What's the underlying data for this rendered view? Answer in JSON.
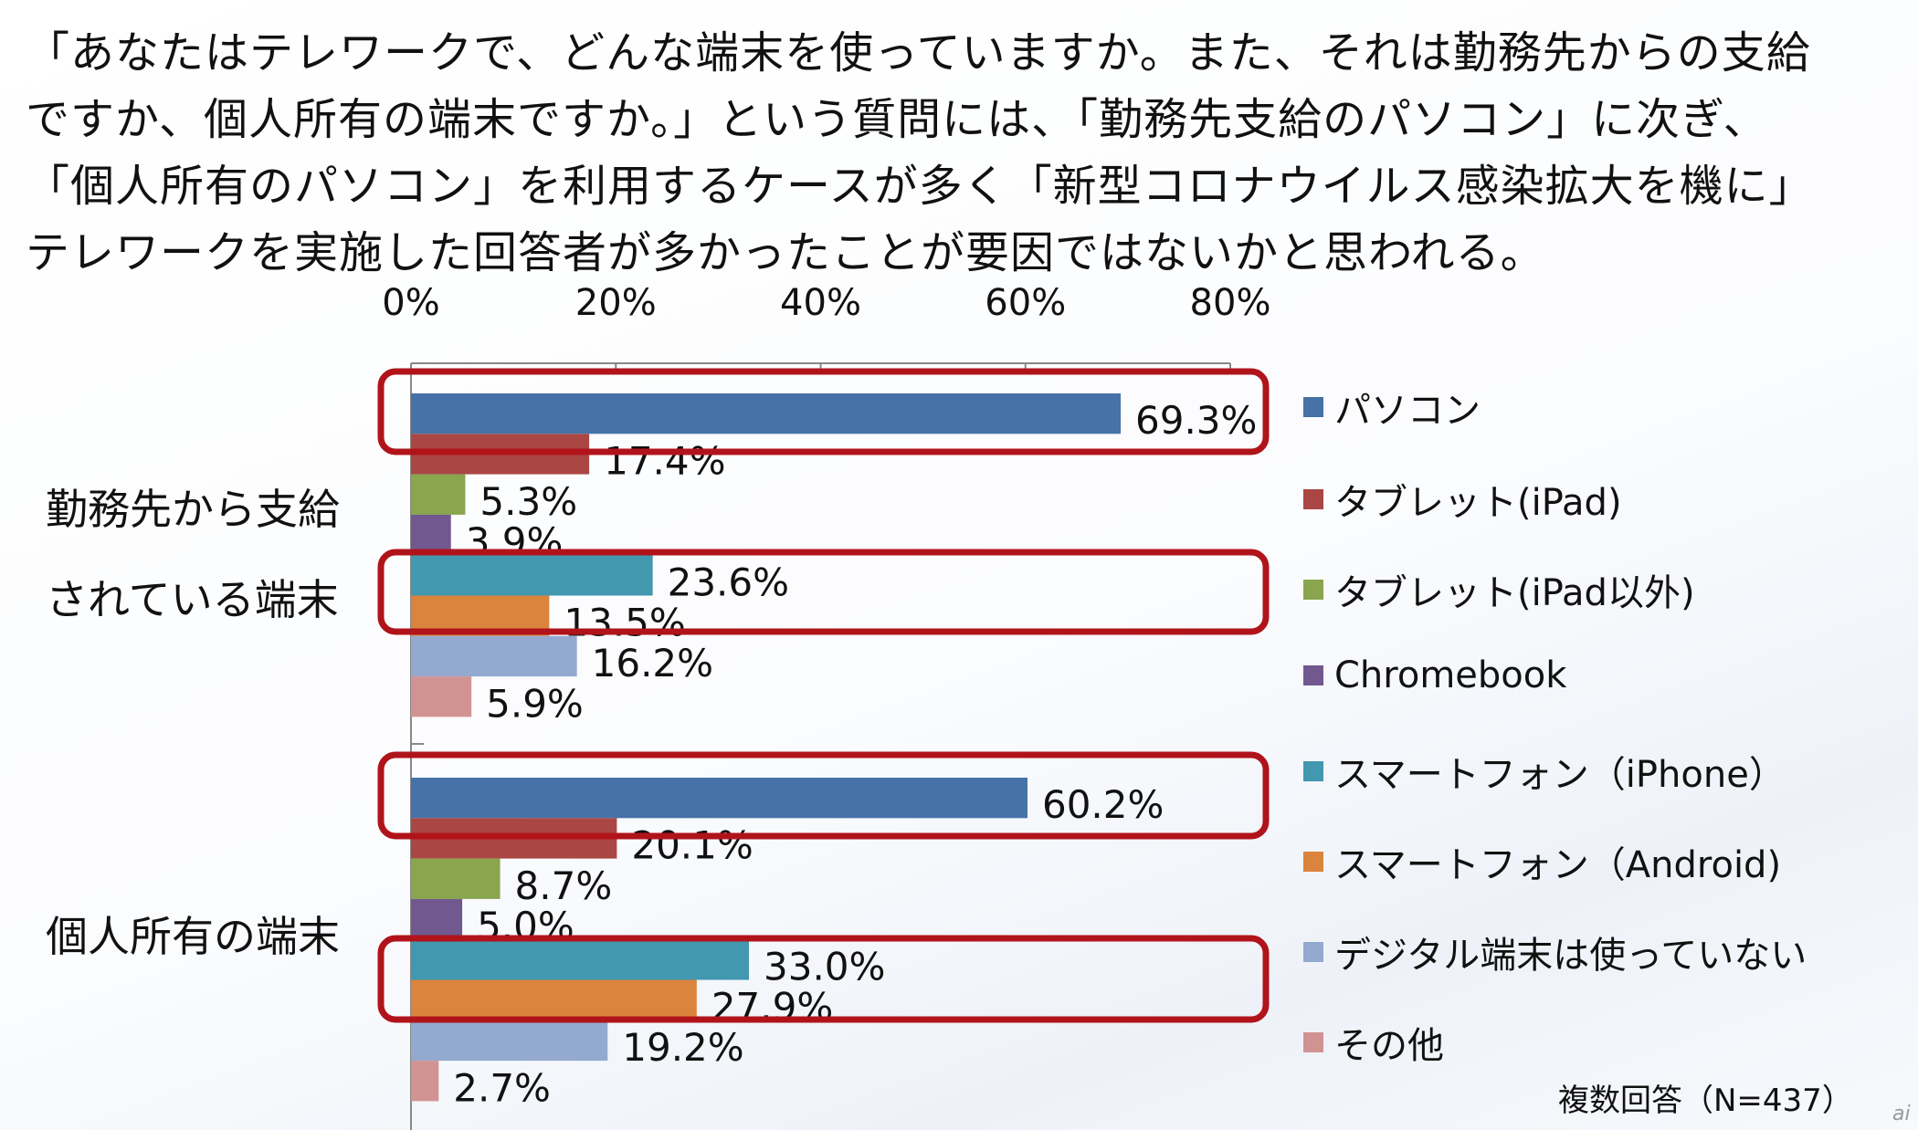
{
  "paragraph": {
    "lines": [
      "「あなたはテレワークで、どんな端末を使っていますか。また、それは勤務先からの支給",
      "ですか、個人所有の端末ですか。」という質問には、「勤務先支給のパソコン」に次ぎ、",
      "「個人所有のパソコン」を利用するケースが多く「新型コロナウイルス感染拡大を機に」",
      "テレワークを実施した回答者が多かったことが要因ではないかと思われる。"
    ]
  },
  "chart_data": {
    "type": "bar",
    "orientation": "horizontal",
    "title": "",
    "xlabel": "",
    "ylabel": "",
    "xlim": [
      0,
      80
    ],
    "x_ticks": [
      "0%",
      "20%",
      "40%",
      "60%",
      "80%"
    ],
    "x_tick_values": [
      0,
      20,
      40,
      60,
      80
    ],
    "categories": [
      {
        "label_lines": [
          "勤務先から支給",
          "されている端末"
        ]
      },
      {
        "label_lines": [
          "個人所有の端末"
        ]
      }
    ],
    "series": [
      {
        "name": "パソコン",
        "color": "#4672a8",
        "values": [
          69.3,
          60.2
        ],
        "labels": [
          "69.3%",
          "60.2%"
        ]
      },
      {
        "name": "タブレット(iPad)",
        "color": "#aa4644",
        "values": [
          17.4,
          20.1
        ],
        "labels": [
          "17.4%",
          "20.1%"
        ]
      },
      {
        "name": "タブレット(iPad以外)",
        "color": "#89a54e",
        "values": [
          5.3,
          8.7
        ],
        "labels": [
          "5.3%",
          "8.7%"
        ]
      },
      {
        "name": "Chromebook",
        "color": "#71588f",
        "values": [
          3.9,
          5.0
        ],
        "labels": [
          "3.9%",
          "5.0%"
        ]
      },
      {
        "name": "スマートフォン（iPhone）",
        "color": "#4198af",
        "values": [
          23.6,
          33.0
        ],
        "labels": [
          "23.6%",
          "33.0%"
        ]
      },
      {
        "name": "スマートフォン（Android)",
        "color": "#db843d",
        "values": [
          13.5,
          27.9
        ],
        "labels": [
          "13.5%",
          "27.9%"
        ]
      },
      {
        "name": "デジタル端末は使っていない",
        "color": "#93a9cf",
        "values": [
          16.2,
          19.2
        ],
        "labels": [
          "16.2%",
          "19.2%"
        ]
      },
      {
        "name": "その他",
        "color": "#d19392",
        "values": [
          5.9,
          2.7
        ],
        "labels": [
          "5.9%",
          "2.7%"
        ]
      }
    ],
    "highlight_color": "#b0141a",
    "highlighted_series_in_each_category": [
      "パソコン",
      "スマートフォン（iPhone）+スマートフォン（Android)"
    ],
    "legend_position": "right",
    "footnote": "複数回答（N=437）"
  },
  "watermark": "ai"
}
